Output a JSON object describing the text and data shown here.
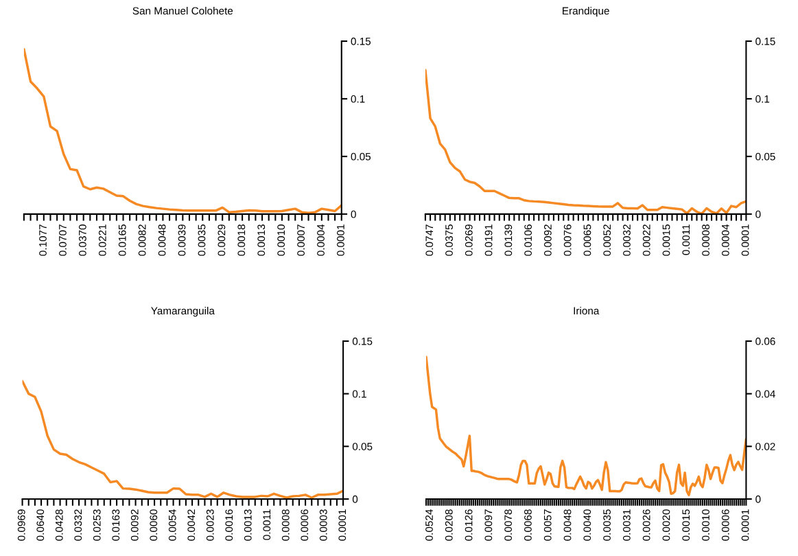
{
  "chart_data": [
    {
      "type": "line",
      "title": "San Manuel Colohete",
      "categories": [
        null,
        null,
        null,
        "0.1077",
        null,
        null,
        "0.0707",
        null,
        null,
        "0.0370",
        null,
        null,
        "0.0221",
        null,
        null,
        "0.0165",
        null,
        null,
        "0.0082",
        null,
        null,
        "0.0048",
        null,
        null,
        "0.0039",
        null,
        null,
        "0.0035",
        null,
        null,
        "0.0029",
        null,
        null,
        "0.0018",
        null,
        null,
        "0.0013",
        null,
        null,
        "0.0010",
        null,
        null,
        "0.0007",
        null,
        null,
        "0.0004",
        null,
        null,
        "0.0001"
      ],
      "series": [
        {
          "color": "#f58a25",
          "values": [
            0.143,
            0.115,
            0.109,
            0.102,
            0.076,
            0.072,
            0.052,
            0.039,
            0.038,
            0.024,
            0.0215,
            0.023,
            0.022,
            0.019,
            0.016,
            0.0155,
            0.0115,
            0.0086,
            0.007,
            0.006,
            0.0052,
            0.0046,
            0.004,
            0.0036,
            0.0032,
            0.003,
            0.003,
            0.003,
            0.003,
            0.003,
            0.0056,
            0.0016,
            0.002,
            0.0026,
            0.0032,
            0.003,
            0.0024,
            0.0025,
            0.0025,
            0.0026,
            0.0036,
            0.0046,
            0.0016,
            0.001,
            0.0016,
            0.0046,
            0.0036,
            0.0026,
            0.0076
          ]
        }
      ],
      "ylim": [
        0,
        0.15
      ],
      "yticks": [
        0,
        0.05,
        0.1,
        0.15
      ],
      "grid": false,
      "legend": false
    },
    {
      "type": "line",
      "title": "Erandique",
      "categories": [
        null,
        "0.0747",
        null,
        null,
        null,
        "0.0375",
        null,
        null,
        null,
        "0.0269",
        null,
        null,
        null,
        "0.0191",
        null,
        null,
        null,
        "0.0139",
        null,
        null,
        null,
        "0.0106",
        null,
        null,
        null,
        "0.0092",
        null,
        null,
        null,
        "0.0076",
        null,
        null,
        null,
        "0.0065",
        null,
        null,
        null,
        "0.0052",
        null,
        null,
        null,
        "0.0032",
        null,
        null,
        null,
        "0.0022",
        null,
        null,
        null,
        "0.0015",
        null,
        null,
        null,
        "0.0011",
        null,
        null,
        null,
        "0.0008",
        null,
        null,
        null,
        "0.0004",
        null,
        null,
        null,
        "0.0001"
      ],
      "series": [
        {
          "color": "#f58a25",
          "values": [
            0.125,
            0.083,
            0.076,
            0.061,
            0.056,
            0.045,
            0.04,
            0.037,
            0.03,
            0.028,
            0.027,
            0.024,
            0.02,
            0.02,
            0.02,
            0.018,
            0.016,
            0.014,
            0.0137,
            0.0137,
            0.012,
            0.0113,
            0.011,
            0.0108,
            0.0105,
            0.01,
            0.0095,
            0.009,
            0.0085,
            0.008,
            0.0077,
            0.0075,
            0.0072,
            0.007,
            0.0068,
            0.0066,
            0.0065,
            0.0064,
            0.0065,
            0.0095,
            0.0054,
            0.005,
            0.005,
            0.0048,
            0.0077,
            0.0036,
            0.0036,
            0.0036,
            0.006,
            0.0055,
            0.005,
            0.0045,
            0.004,
            0.0006,
            0.005,
            0.002,
            0.0003,
            0.005,
            0.002,
            0.0005,
            0.0048,
            0.001,
            0.007,
            0.006,
            0.0095,
            0.011
          ]
        }
      ],
      "ylim": [
        0,
        0.15
      ],
      "yticks": [
        0,
        0.05,
        0.1,
        0.15
      ],
      "grid": false,
      "legend": false
    },
    {
      "type": "line",
      "title": "Yamaranguila",
      "categories": [
        "0.0969",
        null,
        null,
        "0.0640",
        null,
        null,
        "0.0428",
        null,
        null,
        "0.0332",
        null,
        null,
        "0.0253",
        null,
        null,
        "0.0163",
        null,
        null,
        "0.0092",
        null,
        null,
        "0.0060",
        null,
        null,
        "0.0054",
        null,
        null,
        "0.0042",
        null,
        null,
        "0.0023",
        null,
        null,
        "0.0016",
        null,
        null,
        "0.0013",
        null,
        null,
        "0.0011",
        null,
        null,
        "0.0008",
        null,
        null,
        "0.0006",
        null,
        null,
        "0.0003",
        null,
        null,
        "0.0001"
      ],
      "series": [
        {
          "color": "#f58a25",
          "values": [
            0.112,
            0.1,
            0.097,
            0.083,
            0.06,
            0.047,
            0.043,
            0.042,
            0.038,
            0.035,
            0.033,
            0.03,
            0.027,
            0.024,
            0.016,
            0.017,
            0.01,
            0.0098,
            0.009,
            0.0078,
            0.0065,
            0.006,
            0.006,
            0.006,
            0.01,
            0.0098,
            0.0045,
            0.004,
            0.004,
            0.002,
            0.005,
            0.002,
            0.006,
            0.004,
            0.0026,
            0.002,
            0.002,
            0.002,
            0.003,
            0.0026,
            0.005,
            0.003,
            0.0013,
            0.0026,
            0.003,
            0.004,
            0.0013,
            0.004,
            0.004,
            0.0045,
            0.005,
            0.0078
          ]
        }
      ],
      "ylim": [
        0,
        0.15
      ],
      "yticks": [
        0,
        0.05,
        0.1,
        0.15
      ],
      "grid": false,
      "legend": false
    },
    {
      "type": "line",
      "title": "Iriona",
      "categories": [
        null,
        null,
        "0.0524",
        null,
        null,
        null,
        null,
        null,
        null,
        null,
        null,
        null,
        "0.0208",
        null,
        null,
        null,
        null,
        null,
        null,
        null,
        null,
        null,
        "0.0126",
        null,
        null,
        null,
        null,
        null,
        null,
        null,
        null,
        null,
        "0.0097",
        null,
        null,
        null,
        null,
        null,
        null,
        null,
        null,
        null,
        "0.0078",
        null,
        null,
        null,
        null,
        null,
        null,
        null,
        null,
        null,
        "0.0068",
        null,
        null,
        null,
        null,
        null,
        null,
        null,
        null,
        null,
        "0.0057",
        null,
        null,
        null,
        null,
        null,
        null,
        null,
        null,
        null,
        "0.0048",
        null,
        null,
        null,
        null,
        null,
        null,
        null,
        null,
        null,
        "0.0040",
        null,
        null,
        null,
        null,
        null,
        null,
        null,
        null,
        null,
        "0.0035",
        null,
        null,
        null,
        null,
        null,
        null,
        null,
        null,
        null,
        "0.0031",
        null,
        null,
        null,
        null,
        null,
        null,
        null,
        null,
        null,
        "0.0026",
        null,
        null,
        null,
        null,
        null,
        null,
        null,
        null,
        null,
        "0.0020",
        null,
        null,
        null,
        null,
        null,
        null,
        null,
        null,
        null,
        "0.0015",
        null,
        null,
        null,
        null,
        null,
        null,
        null,
        null,
        null,
        "0.0010",
        null,
        null,
        null,
        null,
        null,
        null,
        null,
        null,
        null,
        "0.0006",
        null,
        null,
        null,
        null,
        null,
        null,
        null,
        null,
        null,
        "0.0001"
      ],
      "series": [
        {
          "color": "#f58a25",
          "values": [
            0.054,
            0.047,
            0.04,
            0.035,
            0.0345,
            0.034,
            0.027,
            0.023,
            0.022,
            0.021,
            0.02,
            0.0194,
            0.0188,
            0.0182,
            0.0177,
            0.0172,
            0.0164,
            0.0157,
            0.015,
            0.0124,
            0.016,
            0.02,
            0.024,
            0.0107,
            0.0107,
            0.0105,
            0.0104,
            0.0102,
            0.0099,
            0.0094,
            0.009,
            0.0087,
            0.0085,
            0.0083,
            0.0081,
            0.0079,
            0.0077,
            0.0076,
            0.0076,
            0.0076,
            0.0076,
            0.0076,
            0.0076,
            0.0074,
            0.007,
            0.0066,
            0.0063,
            0.009,
            0.013,
            0.0145,
            0.0145,
            0.013,
            0.0059,
            0.0059,
            0.0059,
            0.0059,
            0.0098,
            0.0115,
            0.0124,
            0.009,
            0.0055,
            0.0075,
            0.01,
            0.0095,
            0.006,
            0.0048,
            0.0047,
            0.0046,
            0.012,
            0.0145,
            0.012,
            0.0045,
            0.0042,
            0.0042,
            0.0042,
            0.0038,
            0.0055,
            0.007,
            0.0085,
            0.007,
            0.005,
            0.004,
            0.0065,
            0.006,
            0.004,
            0.005,
            0.0065,
            0.0072,
            0.0055,
            0.0035,
            0.01,
            0.014,
            0.011,
            0.003,
            0.003,
            0.003,
            0.003,
            0.0029,
            0.0029,
            0.0035,
            0.0055,
            0.0063,
            0.0062,
            0.0061,
            0.006,
            0.0059,
            0.0059,
            0.006,
            0.0075,
            0.0078,
            0.006,
            0.0048,
            0.0047,
            0.0045,
            0.0044,
            0.006,
            0.007,
            0.004,
            0.003,
            0.0128,
            0.0132,
            0.01,
            0.0085,
            0.0065,
            0.002,
            0.0022,
            0.003,
            0.01,
            0.013,
            0.006,
            0.005,
            0.01,
            0.003,
            0.0015,
            0.0045,
            0.0058,
            0.005,
            0.0065,
            0.0085,
            0.0055,
            0.0045,
            0.008,
            0.013,
            0.011,
            0.0076,
            0.01,
            0.012,
            0.012,
            0.0118,
            0.007,
            0.006,
            0.009,
            0.0115,
            0.0145,
            0.0167,
            0.013,
            0.011,
            0.013,
            0.0141,
            0.0125,
            0.0111,
            0.017,
            0.0228
          ]
        }
      ],
      "ylim": [
        0,
        0.06
      ],
      "yticks": [
        0,
        0.02,
        0.04,
        0.06
      ],
      "grid": false,
      "legend": false
    }
  ]
}
